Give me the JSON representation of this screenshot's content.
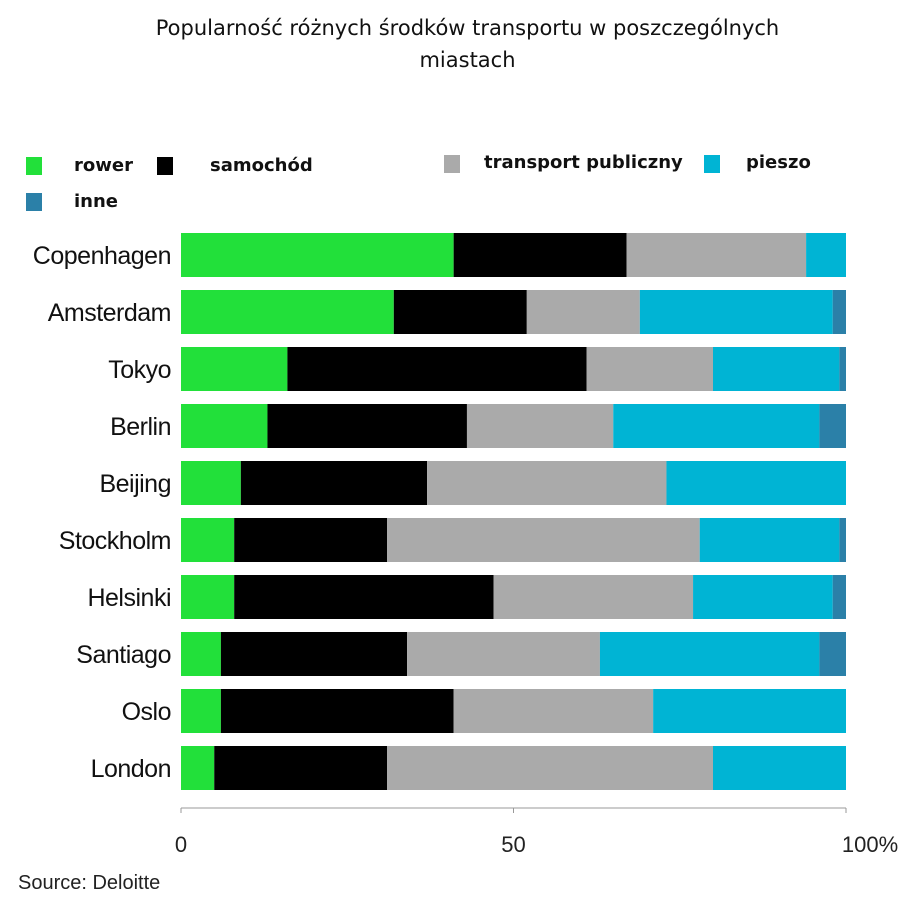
{
  "chart_data": {
    "type": "bar",
    "orientation": "horizontal",
    "stacked": true,
    "title": "Popularność różnych środków transportu w poszczególnych miastach",
    "title_lines": [
      "Popularność różnych środków transportu w poszczególnych",
      "miastach"
    ],
    "categories": [
      "Copenhagen",
      "Amsterdam",
      "Tokyo",
      "Berlin",
      "Beijing",
      "Stockholm",
      "Helsinki",
      "Santiago",
      "Oslo",
      "London"
    ],
    "series": [
      {
        "name": "rower",
        "color": "#22e03a",
        "values": [
          41,
          32,
          16,
          13,
          9,
          8,
          8,
          6,
          6,
          5
        ]
      },
      {
        "name": "samochód",
        "color": "#000000",
        "values": [
          26,
          20,
          45,
          30,
          28,
          23,
          39,
          28,
          35,
          26
        ]
      },
      {
        "name": "transport publiczny",
        "color": "#aaaaaa",
        "values": [
          27,
          17,
          19,
          22,
          36,
          47,
          30,
          29,
          30,
          49
        ]
      },
      {
        "name": "pieszo",
        "color": "#00b4d4",
        "values": [
          6,
          29,
          19,
          31,
          27,
          21,
          21,
          33,
          29,
          20
        ]
      },
      {
        "name": "inne",
        "color": "#2b80a8",
        "values": [
          0,
          2,
          1,
          4,
          0,
          1,
          2,
          4,
          0,
          0
        ]
      }
    ],
    "xlim": [
      0,
      100
    ],
    "xticks": [
      "0",
      "50",
      "100%"
    ],
    "xtick_values": [
      0,
      50,
      100
    ],
    "xlabel": "",
    "ylabel": "",
    "legend_position": "top",
    "source": "Source: Deloitte"
  }
}
